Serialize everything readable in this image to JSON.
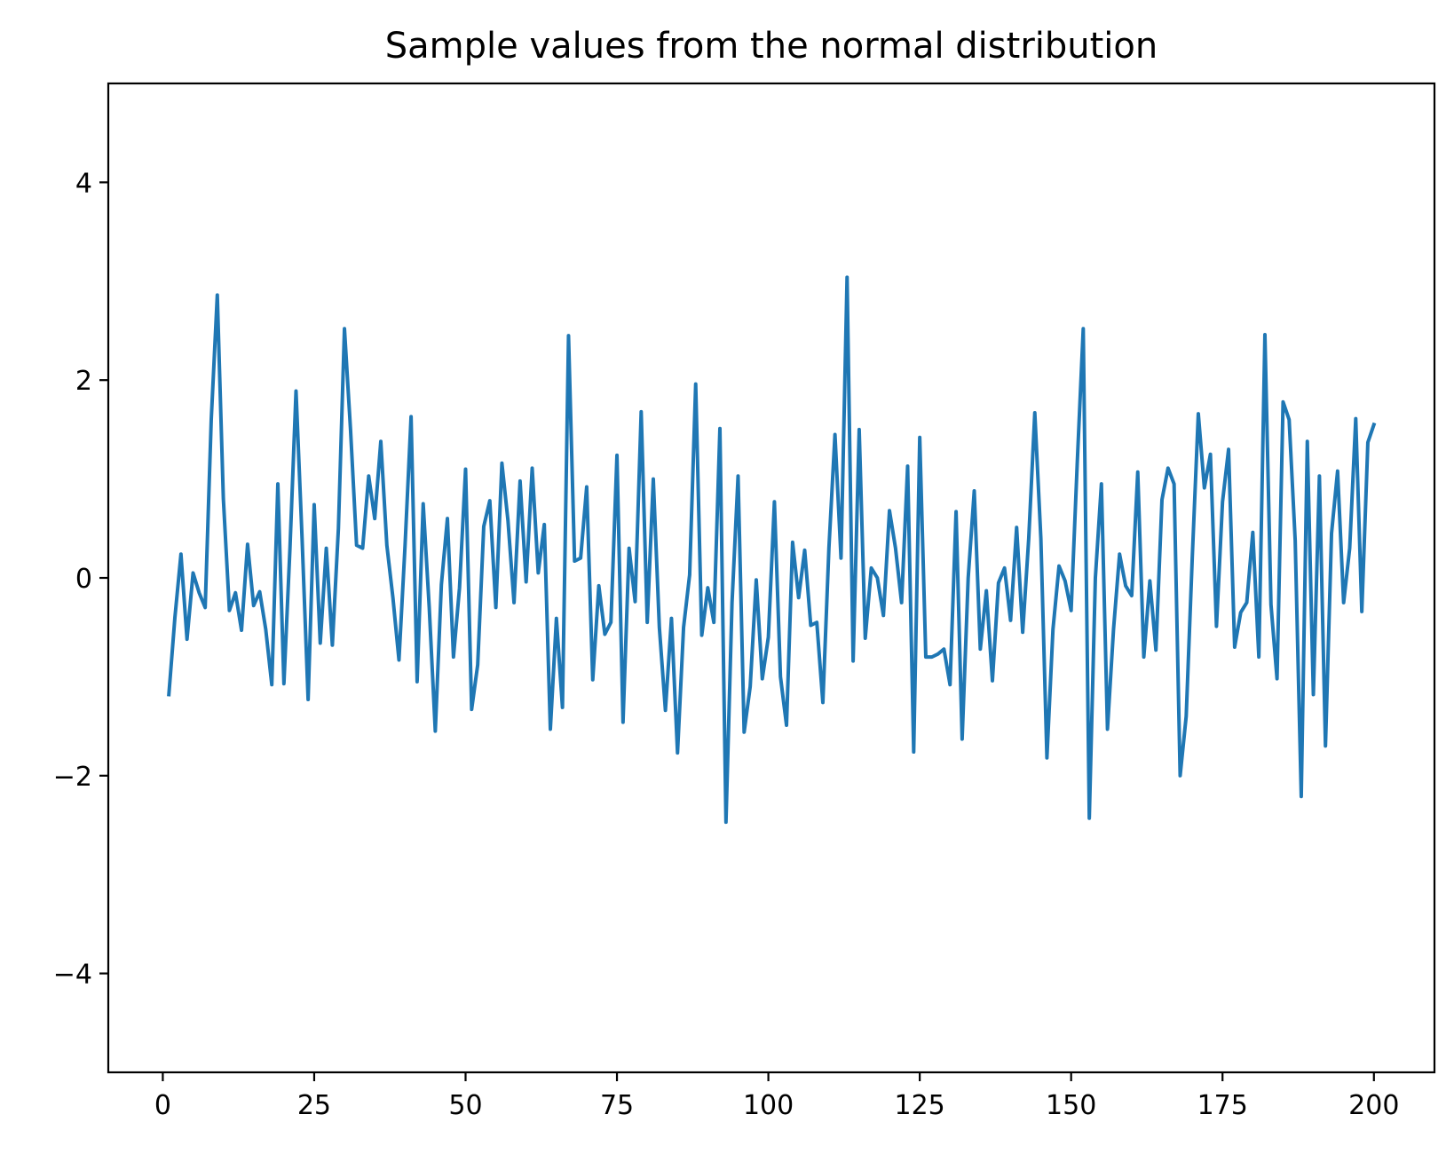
{
  "chart_data": {
    "type": "line",
    "title": "Sample values from the normal distribution",
    "xlabel": "",
    "ylabel": "",
    "xlim": [
      -9,
      210
    ],
    "ylim": [
      -5,
      5
    ],
    "xticks": [
      0,
      25,
      50,
      75,
      100,
      125,
      150,
      175,
      200
    ],
    "yticks": [
      -4,
      -2,
      0,
      2,
      4
    ],
    "xtick_labels": [
      "0",
      "25",
      "50",
      "75",
      "100",
      "125",
      "150",
      "175",
      "200"
    ],
    "ytick_labels": [
      "−4",
      "−2",
      "0",
      "2",
      "4"
    ],
    "grid": false,
    "legend": "none",
    "series": [
      {
        "color": "#1f77b4",
        "x": [
          1,
          2,
          3,
          4,
          5,
          6,
          7,
          8,
          9,
          10,
          11,
          12,
          13,
          14,
          15,
          16,
          17,
          18,
          19,
          20,
          21,
          22,
          23,
          24,
          25,
          26,
          27,
          28,
          29,
          30,
          31,
          32,
          33,
          34,
          35,
          36,
          37,
          38,
          39,
          40,
          41,
          42,
          43,
          44,
          45,
          46,
          47,
          48,
          49,
          50,
          51,
          52,
          53,
          54,
          55,
          56,
          57,
          58,
          59,
          60,
          61,
          62,
          63,
          64,
          65,
          66,
          67,
          68,
          69,
          70,
          71,
          72,
          73,
          74,
          75,
          76,
          77,
          78,
          79,
          80,
          81,
          82,
          83,
          84,
          85,
          86,
          87,
          88,
          89,
          90,
          91,
          92,
          93,
          94,
          95,
          96,
          97,
          98,
          99,
          100,
          101,
          102,
          103,
          104,
          105,
          106,
          107,
          108,
          109,
          110,
          111,
          112,
          113,
          114,
          115,
          116,
          117,
          118,
          119,
          120,
          121,
          122,
          123,
          124,
          125,
          126,
          127,
          128,
          129,
          130,
          131,
          132,
          133,
          134,
          135,
          136,
          137,
          138,
          139,
          140,
          141,
          142,
          143,
          144,
          145,
          146,
          147,
          148,
          149,
          150,
          151,
          152,
          153,
          154,
          155,
          156,
          157,
          158,
          159,
          160,
          161,
          162,
          163,
          164,
          165,
          166,
          167,
          168,
          169,
          170,
          171,
          172,
          173,
          174,
          175,
          176,
          177,
          178,
          179,
          180,
          181,
          182,
          183,
          184,
          185,
          186,
          187,
          188,
          189,
          190,
          191,
          192,
          193,
          194,
          195,
          196,
          197,
          198,
          199,
          200
        ],
        "values": [
          -1.18,
          -0.4,
          0.24,
          -0.62,
          0.05,
          -0.15,
          -0.3,
          1.6,
          2.86,
          0.8,
          -0.33,
          -0.15,
          -0.53,
          0.34,
          -0.28,
          -0.14,
          -0.52,
          -1.08,
          0.95,
          -1.07,
          0.3,
          1.89,
          0.4,
          -1.23,
          0.74,
          -0.66,
          0.3,
          -0.68,
          0.5,
          2.52,
          1.5,
          0.33,
          0.3,
          1.03,
          0.6,
          1.38,
          0.33,
          -0.2,
          -0.83,
          0.32,
          1.63,
          -1.05,
          0.75,
          -0.3,
          -1.55,
          -0.07,
          0.6,
          -0.8,
          -0.1,
          1.1,
          -1.33,
          -0.88,
          0.52,
          0.78,
          -0.3,
          1.16,
          0.58,
          -0.25,
          0.98,
          -0.04,
          1.11,
          0.05,
          0.54,
          -1.53,
          -0.41,
          -1.31,
          2.45,
          0.17,
          0.2,
          0.92,
          -1.03,
          -0.08,
          -0.57,
          -0.45,
          1.24,
          -1.46,
          0.3,
          -0.24,
          1.68,
          -0.45,
          1.0,
          -0.5,
          -1.34,
          -0.41,
          -1.77,
          -0.5,
          0.03,
          1.96,
          -0.58,
          -0.1,
          -0.45,
          1.51,
          -2.47,
          -0.25,
          1.03,
          -1.56,
          -1.1,
          -0.02,
          -1.02,
          -0.6,
          0.77,
          -1.0,
          -1.49,
          0.36,
          -0.2,
          0.28,
          -0.48,
          -0.45,
          -1.26,
          0.3,
          1.45,
          0.2,
          3.04,
          -0.84,
          1.5,
          -0.61,
          0.1,
          0.0,
          -0.38,
          0.68,
          0.3,
          -0.25,
          1.13,
          -1.76,
          1.42,
          -0.8,
          -0.8,
          -0.77,
          -0.72,
          -1.08,
          0.67,
          -1.63,
          0.0,
          0.88,
          -0.72,
          -0.13,
          -1.04,
          -0.05,
          0.1,
          -0.43,
          0.51,
          -0.55,
          0.4,
          1.67,
          0.4,
          -1.82,
          -0.52,
          0.12,
          -0.03,
          -0.33,
          1.15,
          2.52,
          -2.43,
          0.0,
          0.95,
          -1.53,
          -0.52,
          0.24,
          -0.08,
          -0.18,
          1.07,
          -0.8,
          -0.03,
          -0.73,
          0.79,
          1.11,
          0.95,
          -2.0,
          -1.4,
          0.2,
          1.66,
          0.91,
          1.25,
          -0.49,
          0.77,
          1.3,
          -0.7,
          -0.35,
          -0.25,
          0.46,
          -0.8,
          2.46,
          -0.27,
          -1.02,
          1.78,
          1.6,
          0.38,
          -2.21,
          1.38,
          -1.18,
          1.03,
          -1.7,
          0.45,
          1.08,
          -0.25,
          0.3,
          1.61,
          -0.34,
          1.37,
          1.55
        ]
      }
    ]
  }
}
